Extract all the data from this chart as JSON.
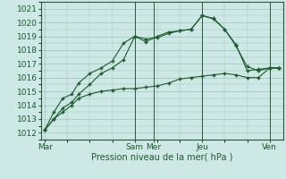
{
  "title": "",
  "xlabel": "Pression niveau de la mer( hPa )",
  "ylabel": "",
  "bg_color": "#cde8e5",
  "grid_color": "#9dc4bc",
  "line_color": "#1a5c2a",
  "ylim": [
    1011.5,
    1021.5
  ],
  "xlim": [
    -0.15,
    10.6
  ],
  "xtick_labels": [
    "Mar",
    "Sam",
    "Mer",
    "Jeu",
    "Ven"
  ],
  "xtick_positions": [
    0.0,
    4.0,
    4.85,
    7.0,
    10.0
  ],
  "series": [
    {
      "x": [
        0,
        0.4,
        0.8,
        1.2,
        1.5,
        2.0,
        2.5,
        3.0,
        3.5,
        4.0,
        4.5,
        5.0,
        5.5,
        6.0,
        6.5,
        7.0,
        7.5,
        8.0,
        8.5,
        9.0,
        9.5,
        10.0,
        10.4
      ],
      "y": [
        1012.2,
        1013.0,
        1013.8,
        1014.2,
        1014.8,
        1015.5,
        1016.3,
        1016.7,
        1017.3,
        1019.0,
        1018.6,
        1019.0,
        1019.3,
        1019.4,
        1019.5,
        1020.5,
        1020.25,
        1019.5,
        1018.4,
        1016.5,
        1016.6,
        1016.7,
        1016.7
      ],
      "marker": "+"
    },
    {
      "x": [
        0,
        0.4,
        0.8,
        1.2,
        1.5,
        2.0,
        2.5,
        3.0,
        3.5,
        4.0,
        4.5,
        5.0,
        5.5,
        6.0,
        6.5,
        7.0,
        7.5,
        8.0,
        8.5,
        9.0,
        9.5,
        10.0,
        10.4
      ],
      "y": [
        1012.2,
        1013.5,
        1014.5,
        1014.8,
        1015.6,
        1016.3,
        1016.7,
        1017.2,
        1018.5,
        1019.0,
        1018.8,
        1018.9,
        1019.2,
        1019.4,
        1019.5,
        1020.5,
        1020.3,
        1019.5,
        1018.3,
        1016.8,
        1016.5,
        1016.7,
        1016.7
      ],
      "marker": "+"
    },
    {
      "x": [
        0,
        0.4,
        0.8,
        1.2,
        1.5,
        2.0,
        2.5,
        3.0,
        3.5,
        4.0,
        4.5,
        5.0,
        5.5,
        6.0,
        6.5,
        7.0,
        7.5,
        8.0,
        8.5,
        9.0,
        9.5,
        10.0,
        10.4
      ],
      "y": [
        1012.2,
        1013.0,
        1013.5,
        1014.0,
        1014.5,
        1014.8,
        1015.0,
        1015.1,
        1015.2,
        1015.2,
        1015.3,
        1015.4,
        1015.6,
        1015.9,
        1016.0,
        1016.1,
        1016.2,
        1016.3,
        1016.2,
        1016.0,
        1016.0,
        1016.7,
        1016.7
      ],
      "marker": "+"
    }
  ],
  "vlines_x": [
    4.0,
    4.85,
    7.0,
    10.0
  ],
  "ytick_start": 1012,
  "ytick_end": 1021
}
